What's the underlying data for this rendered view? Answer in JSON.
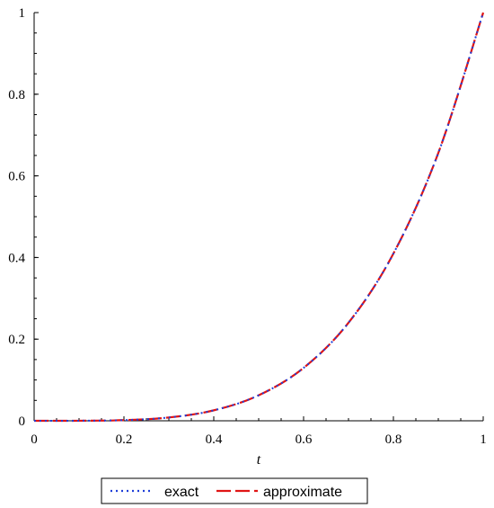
{
  "chart_data": {
    "type": "line",
    "title": "",
    "xlabel": "t",
    "ylabel": "",
    "xlim": [
      0,
      1
    ],
    "ylim": [
      0,
      1
    ],
    "grid": false,
    "legend_position": "bottom",
    "x_ticks": [
      "0",
      "0.2",
      "0.4",
      "0.6",
      "0.8",
      "1"
    ],
    "y_ticks": [
      "0",
      "0.2",
      "0.4",
      "0.6",
      "0.8",
      "1"
    ],
    "x": [
      0.0,
      0.1,
      0.2,
      0.3,
      0.4,
      0.5,
      0.6,
      0.7,
      0.8,
      0.9,
      1.0
    ],
    "series": [
      {
        "name": "exact",
        "style": "dotted",
        "color": "#1f3fd8",
        "values": [
          0,
          0.0001,
          0.0016,
          0.0081,
          0.0256,
          0.0625,
          0.1296,
          0.2401,
          0.4096,
          0.6561,
          1.0
        ]
      },
      {
        "name": "approximate",
        "style": "dashed",
        "color": "#e01515",
        "values": [
          0,
          0.0001,
          0.0016,
          0.0081,
          0.0256,
          0.0625,
          0.1296,
          0.2401,
          0.4096,
          0.6561,
          1.0
        ]
      }
    ]
  }
}
